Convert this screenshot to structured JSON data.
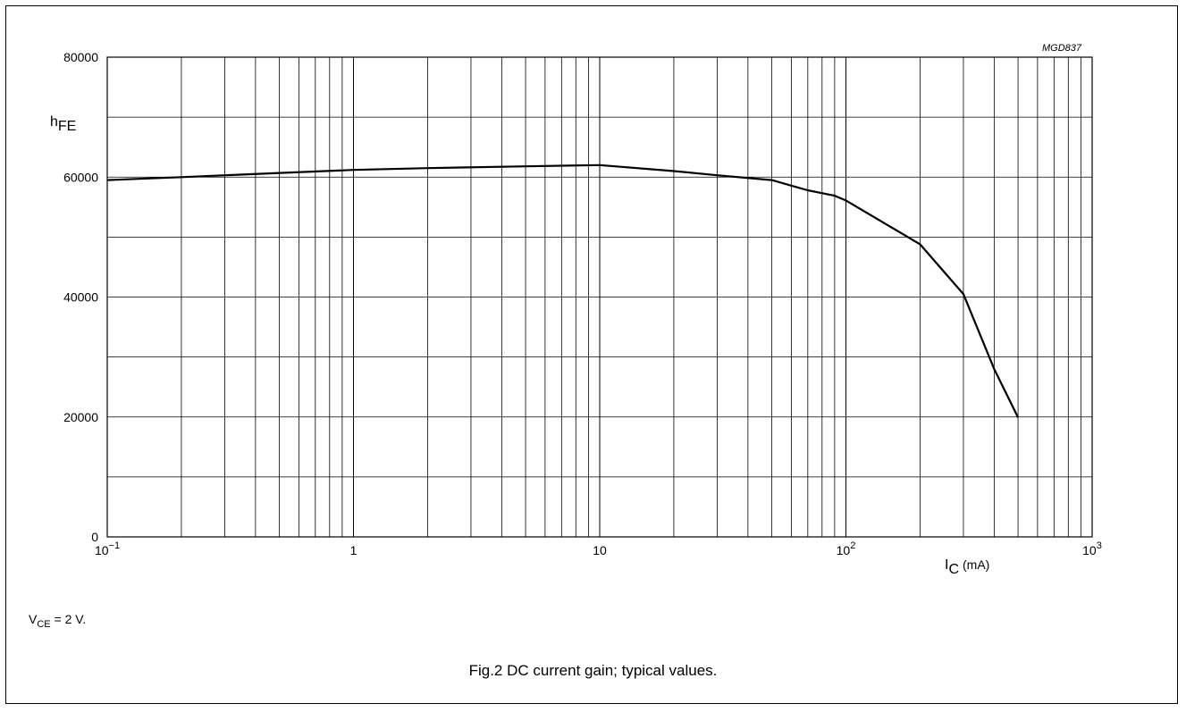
{
  "chart_data": {
    "type": "line",
    "x_scale": "log",
    "xlim": [
      0.1,
      1000
    ],
    "ylim": [
      0,
      80000
    ],
    "x_ticks": [
      {
        "value": 0.1,
        "base": "10",
        "exp": "−1",
        "text": ""
      },
      {
        "value": 1,
        "base": "",
        "exp": "",
        "text": "1"
      },
      {
        "value": 10,
        "base": "",
        "exp": "",
        "text": "10"
      },
      {
        "value": 100,
        "base": "10",
        "exp": "2",
        "text": ""
      },
      {
        "value": 1000,
        "base": "10",
        "exp": "3",
        "text": ""
      }
    ],
    "y_ticks": [
      0,
      20000,
      40000,
      60000,
      80000
    ],
    "y_tick_labels": [
      "0",
      "20000",
      "40000",
      "60000",
      "80000"
    ],
    "y_minor_gridlines": [
      10000,
      30000,
      50000,
      70000
    ],
    "grid": true,
    "xlabel": {
      "main": "I",
      "sub": "C",
      "unit": "(mA)"
    },
    "ylabel": {
      "main": "h",
      "sub": "FE"
    },
    "figure_code": "MGD837",
    "series": [
      {
        "x": [
          0.1,
          0.2,
          0.5,
          1,
          2,
          5,
          10,
          20,
          30,
          50,
          70,
          90,
          100,
          200,
          300,
          400,
          500
        ],
        "y": [
          59500,
          60000,
          60700,
          61200,
          61500,
          61800,
          62000,
          61000,
          60300,
          59500,
          57800,
          56900,
          56100,
          48800,
          40500,
          28000,
          19900
        ]
      }
    ]
  },
  "note": {
    "main": "V",
    "sub": "CE",
    "rest": " = 2 V."
  },
  "caption": "Fig.2  DC current gain; typical values."
}
